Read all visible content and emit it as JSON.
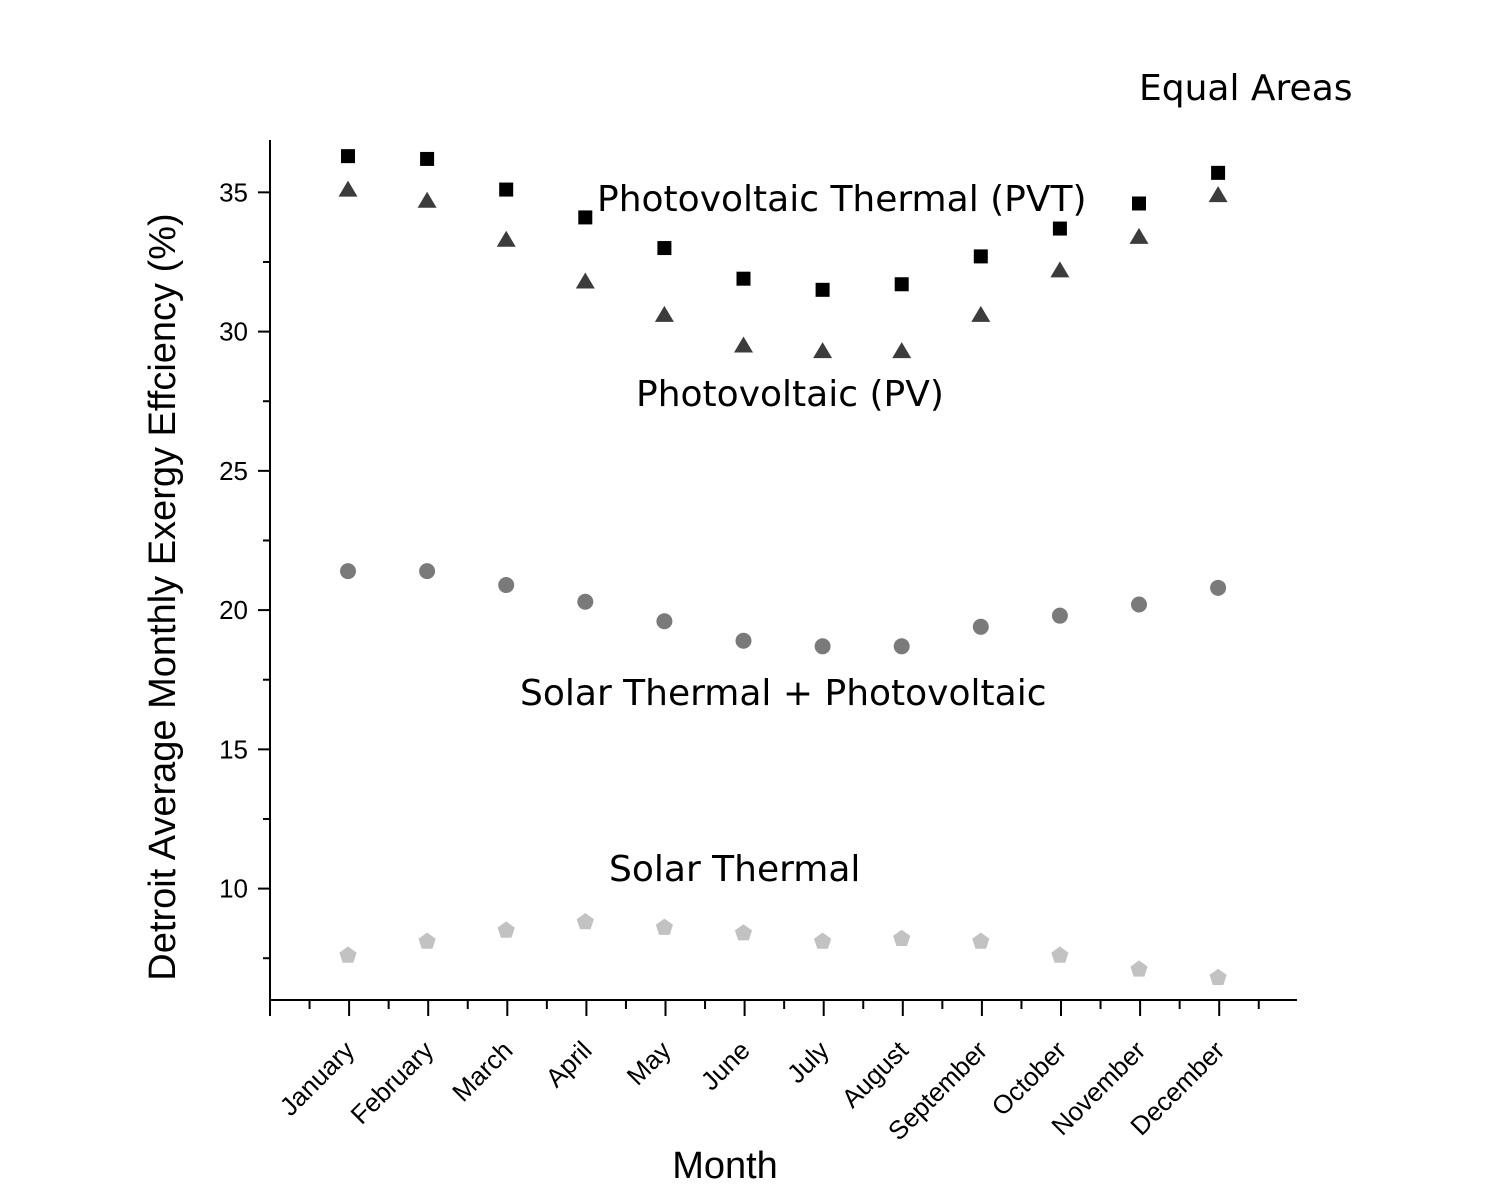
{
  "chart_data": {
    "type": "scatter",
    "title": "",
    "xlabel": "Month",
    "ylabel": "Detroit Average Monthly Exergy Effciency (%)",
    "categories": [
      "January",
      "February",
      "March",
      "April",
      "May",
      "June",
      "July",
      "August",
      "September",
      "October",
      "November",
      "December"
    ],
    "ylim": [
      6,
      37
    ],
    "yticks": [
      10,
      15,
      20,
      25,
      30,
      35
    ],
    "grid": false,
    "legend": "none",
    "series": [
      {
        "marker": "square",
        "color": "#000000",
        "values": [
          36.3,
          36.2,
          35.1,
          34.1,
          33.0,
          31.9,
          31.5,
          31.7,
          32.7,
          33.7,
          34.6,
          35.7
        ]
      },
      {
        "marker": "triangle",
        "color": "#3c3c3c",
        "values": [
          35.1,
          34.7,
          33.3,
          31.8,
          30.6,
          29.5,
          29.3,
          29.3,
          30.6,
          32.2,
          33.4,
          34.9
        ]
      },
      {
        "marker": "circle",
        "color": "#7a7a7a",
        "values": [
          21.4,
          21.4,
          20.9,
          20.3,
          19.6,
          18.9,
          18.7,
          18.7,
          19.4,
          19.8,
          20.2,
          20.8
        ]
      },
      {
        "marker": "pentagon",
        "color": "#c2c2c2",
        "values": [
          7.6,
          8.1,
          8.5,
          8.8,
          8.6,
          8.4,
          8.1,
          8.2,
          8.1,
          7.6,
          7.1,
          6.8
        ]
      }
    ],
    "annotations": [
      {
        "text": "Equal Areas"
      },
      {
        "text": "Photovoltaic Thermal (PVT)"
      },
      {
        "text": "Photovoltaic (PV)"
      },
      {
        "text": "Solar Thermal + Photovoltaic"
      },
      {
        "text": "Solar Thermal"
      }
    ]
  }
}
